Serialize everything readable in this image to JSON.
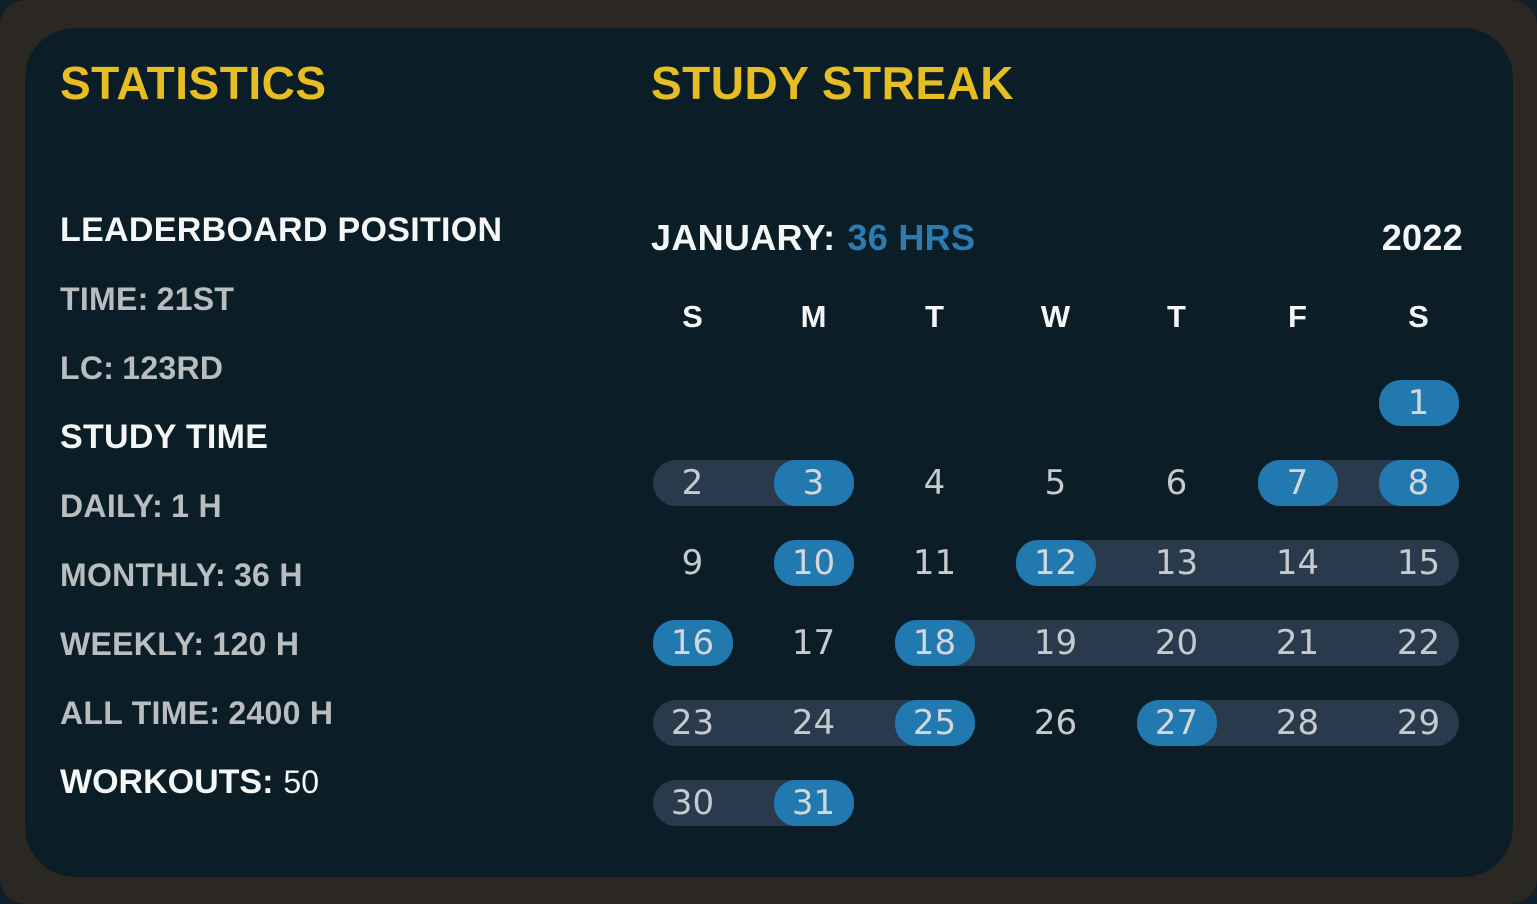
{
  "theme": {
    "page_bg": "#0d202b",
    "frame_color": "#2b2723",
    "card_bg": "#0b1e28",
    "accent_yellow": "#e7bd24",
    "accent_blue": "#2179af",
    "blue_text": "#2b7cb3",
    "streak_bg": "#283a4b",
    "text_white": "#f5f6f6",
    "text_gray": "#b9bdbf",
    "day_num_color": "#c6cacc"
  },
  "statistics": {
    "title": "STATISTICS",
    "leaderboard": {
      "heading": "LEADERBOARD POSITION",
      "rows": [
        {
          "label": "TIME:",
          "value": "21ST"
        },
        {
          "label": "LC:",
          "value": "123RD"
        }
      ]
    },
    "study_time": {
      "heading": "STUDY TIME",
      "rows": [
        {
          "label": "DAILY:",
          "value": "1 H"
        },
        {
          "label": "MONTHLY:",
          "value": "36 H"
        },
        {
          "label": "WEEKLY:",
          "value": "120 H"
        },
        {
          "label": "ALL TIME:",
          "value": "2400 H"
        }
      ]
    },
    "workouts": {
      "label": "WORKOUTS:",
      "value": "50"
    }
  },
  "streak": {
    "title": "STUDY STREAK",
    "month_label": "JANUARY:",
    "month_hours": "36 HRS",
    "year": "2022",
    "day_headers": [
      "S",
      "M",
      "T",
      "W",
      "T",
      "F",
      "S"
    ],
    "weeks": [
      {
        "days": [
          {
            "day": "1",
            "col": 6,
            "active": true
          }
        ],
        "streaks": []
      },
      {
        "days": [
          {
            "day": "2",
            "col": 0
          },
          {
            "day": "3",
            "col": 1,
            "active": true
          },
          {
            "day": "4",
            "col": 2
          },
          {
            "day": "5",
            "col": 3
          },
          {
            "day": "6",
            "col": 4
          },
          {
            "day": "7",
            "col": 5,
            "active": true
          },
          {
            "day": "8",
            "col": 6,
            "active": true
          }
        ],
        "streaks": [
          {
            "from": 0,
            "to": 1
          },
          {
            "from": 5,
            "to": 6
          }
        ]
      },
      {
        "days": [
          {
            "day": "9",
            "col": 0
          },
          {
            "day": "10",
            "col": 1,
            "active": true
          },
          {
            "day": "11",
            "col": 2
          },
          {
            "day": "12",
            "col": 3,
            "active": true
          },
          {
            "day": "13",
            "col": 4
          },
          {
            "day": "14",
            "col": 5
          },
          {
            "day": "15",
            "col": 6
          }
        ],
        "streaks": [
          {
            "from": 3,
            "to": 6
          }
        ]
      },
      {
        "days": [
          {
            "day": "16",
            "col": 0,
            "active": true
          },
          {
            "day": "17",
            "col": 1
          },
          {
            "day": "18",
            "col": 2,
            "active": true
          },
          {
            "day": "19",
            "col": 3
          },
          {
            "day": "20",
            "col": 4
          },
          {
            "day": "21",
            "col": 5
          },
          {
            "day": "22",
            "col": 6
          }
        ],
        "streaks": [
          {
            "from": 2,
            "to": 6
          }
        ]
      },
      {
        "days": [
          {
            "day": "23",
            "col": 0
          },
          {
            "day": "24",
            "col": 1
          },
          {
            "day": "25",
            "col": 2,
            "active": true
          },
          {
            "day": "26",
            "col": 3
          },
          {
            "day": "27",
            "col": 4,
            "active": true
          },
          {
            "day": "28",
            "col": 5
          },
          {
            "day": "29",
            "col": 6
          }
        ],
        "streaks": [
          {
            "from": 0,
            "to": 2
          },
          {
            "from": 4,
            "to": 6
          }
        ]
      },
      {
        "days": [
          {
            "day": "30",
            "col": 0
          },
          {
            "day": "31",
            "col": 1,
            "active": true
          }
        ],
        "streaks": [
          {
            "from": 0,
            "to": 1
          }
        ]
      }
    ]
  }
}
